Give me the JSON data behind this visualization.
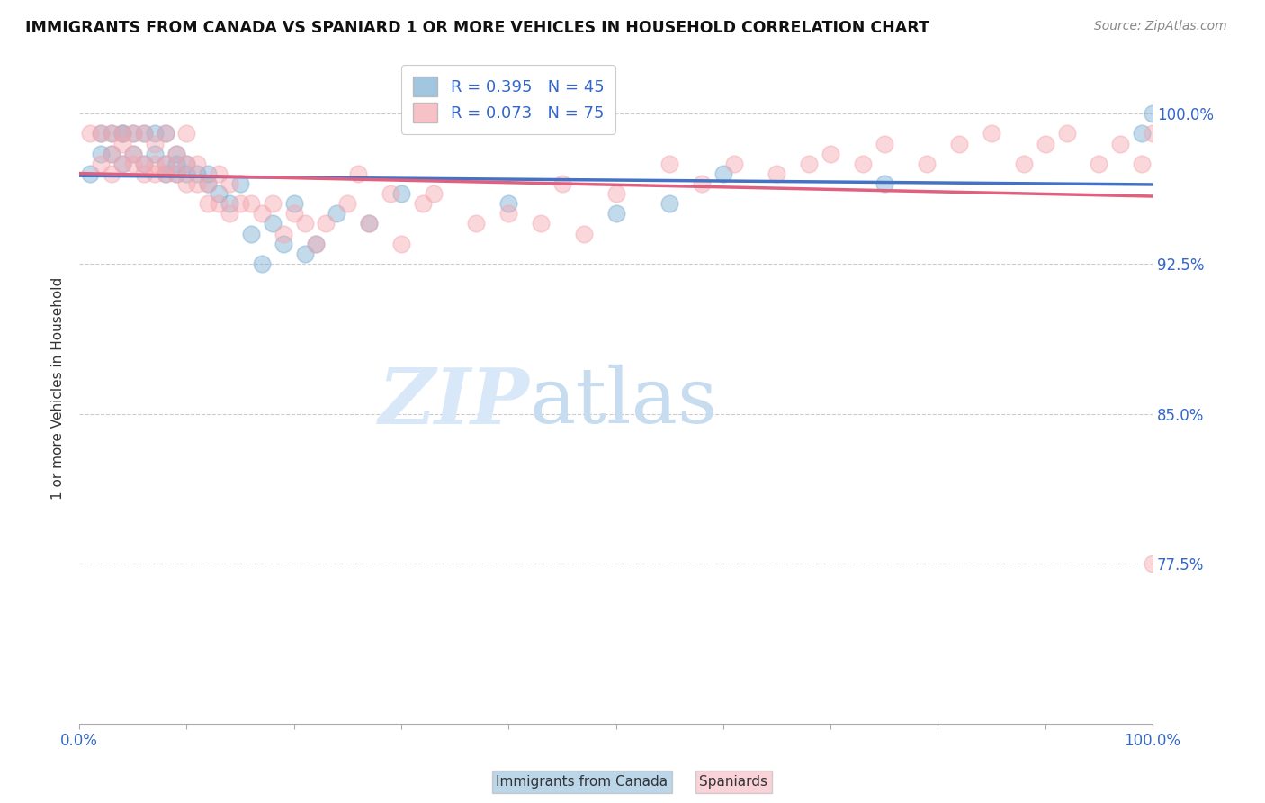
{
  "title": "IMMIGRANTS FROM CANADA VS SPANIARD 1 OR MORE VEHICLES IN HOUSEHOLD CORRELATION CHART",
  "source": "Source: ZipAtlas.com",
  "ylabel": "1 or more Vehicles in Household",
  "ytick_labels": [
    "100.0%",
    "92.5%",
    "85.0%",
    "77.5%"
  ],
  "ytick_values": [
    1.0,
    0.925,
    0.85,
    0.775
  ],
  "xlim": [
    0.0,
    1.0
  ],
  "ylim": [
    0.695,
    1.03
  ],
  "legend_label1": "Immigrants from Canada",
  "legend_label2": "Spaniards",
  "R1": 0.395,
  "N1": 45,
  "R2": 0.073,
  "N2": 75,
  "color_canada": "#7BAFD4",
  "color_spain": "#F4A8B0",
  "color_canada_line": "#4472C4",
  "color_spain_line": "#E06080",
  "color_tick_label": "#3366CC",
  "watermark_zip": "ZIP",
  "watermark_atlas": "atlas",
  "watermark_color": "#D8E8F8",
  "canada_x": [
    0.01,
    0.02,
    0.02,
    0.03,
    0.03,
    0.04,
    0.04,
    0.04,
    0.05,
    0.05,
    0.06,
    0.06,
    0.07,
    0.07,
    0.08,
    0.08,
    0.08,
    0.09,
    0.09,
    0.09,
    0.1,
    0.1,
    0.11,
    0.12,
    0.12,
    0.13,
    0.14,
    0.15,
    0.16,
    0.17,
    0.18,
    0.19,
    0.2,
    0.21,
    0.22,
    0.24,
    0.27,
    0.3,
    0.4,
    0.5,
    0.55,
    0.6,
    0.75,
    0.99,
    1.0
  ],
  "canada_y": [
    0.97,
    0.98,
    0.99,
    0.98,
    0.99,
    0.975,
    0.99,
    0.99,
    0.98,
    0.99,
    0.975,
    0.99,
    0.98,
    0.99,
    0.97,
    0.975,
    0.99,
    0.97,
    0.975,
    0.98,
    0.97,
    0.975,
    0.97,
    0.965,
    0.97,
    0.96,
    0.955,
    0.965,
    0.94,
    0.925,
    0.945,
    0.935,
    0.955,
    0.93,
    0.935,
    0.95,
    0.945,
    0.96,
    0.955,
    0.95,
    0.955,
    0.97,
    0.965,
    0.99,
    1.0
  ],
  "spain_x": [
    0.01,
    0.02,
    0.02,
    0.03,
    0.03,
    0.03,
    0.04,
    0.04,
    0.04,
    0.05,
    0.05,
    0.05,
    0.06,
    0.06,
    0.06,
    0.07,
    0.07,
    0.07,
    0.08,
    0.08,
    0.08,
    0.09,
    0.09,
    0.1,
    0.1,
    0.1,
    0.11,
    0.11,
    0.12,
    0.12,
    0.13,
    0.13,
    0.14,
    0.14,
    0.15,
    0.16,
    0.17,
    0.18,
    0.19,
    0.2,
    0.21,
    0.22,
    0.23,
    0.25,
    0.26,
    0.27,
    0.29,
    0.3,
    0.32,
    0.33,
    0.37,
    0.4,
    0.43,
    0.45,
    0.47,
    0.5,
    0.55,
    0.58,
    0.61,
    0.65,
    0.68,
    0.7,
    0.73,
    0.75,
    0.79,
    0.82,
    0.85,
    0.88,
    0.9,
    0.92,
    0.95,
    0.97,
    0.99,
    1.0,
    1.0
  ],
  "spain_y": [
    0.99,
    0.975,
    0.99,
    0.97,
    0.98,
    0.99,
    0.975,
    0.985,
    0.99,
    0.975,
    0.98,
    0.99,
    0.97,
    0.975,
    0.99,
    0.97,
    0.975,
    0.985,
    0.97,
    0.975,
    0.99,
    0.97,
    0.98,
    0.965,
    0.975,
    0.99,
    0.965,
    0.975,
    0.955,
    0.965,
    0.955,
    0.97,
    0.95,
    0.965,
    0.955,
    0.955,
    0.95,
    0.955,
    0.94,
    0.95,
    0.945,
    0.935,
    0.945,
    0.955,
    0.97,
    0.945,
    0.96,
    0.935,
    0.955,
    0.96,
    0.945,
    0.95,
    0.945,
    0.965,
    0.94,
    0.96,
    0.975,
    0.965,
    0.975,
    0.97,
    0.975,
    0.98,
    0.975,
    0.985,
    0.975,
    0.985,
    0.99,
    0.975,
    0.985,
    0.99,
    0.975,
    0.985,
    0.975,
    0.99,
    0.775
  ]
}
